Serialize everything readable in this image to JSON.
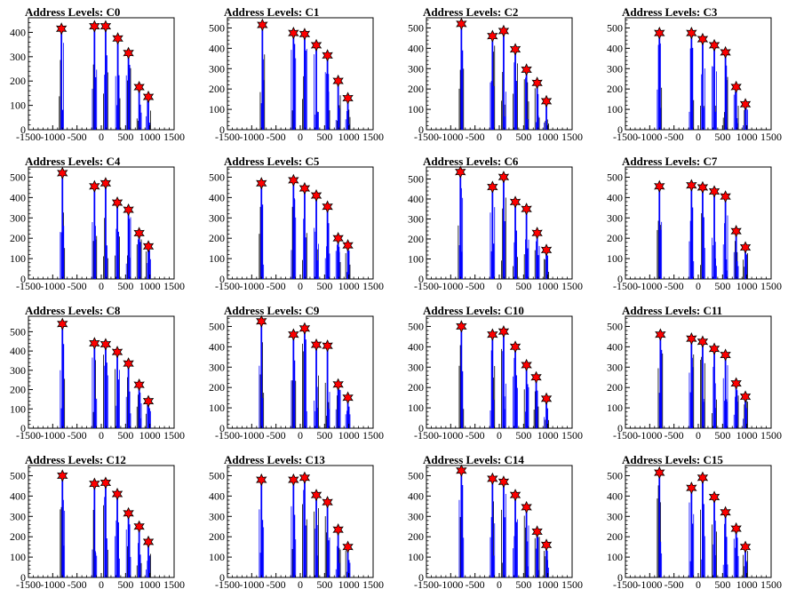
{
  "chart_data": [
    {
      "type": "bar",
      "title": "Address Levels: C0",
      "xlim": [
        -1500,
        1500
      ],
      "ylim": [
        0,
        460
      ],
      "xticks": [
        -1500,
        -1000,
        -500,
        0,
        500,
        1000,
        1500
      ],
      "yticks": [
        0,
        100,
        200,
        300,
        400
      ],
      "peaks": [
        {
          "x": -820,
          "y": 415
        },
        {
          "x": -140,
          "y": 425
        },
        {
          "x": 90,
          "y": 425
        },
        {
          "x": 340,
          "y": 375
        },
        {
          "x": 560,
          "y": 315
        },
        {
          "x": 780,
          "y": 175
        },
        {
          "x": 970,
          "y": 135
        }
      ]
    },
    {
      "type": "bar",
      "title": "Address Levels: C1",
      "xlim": [
        -1500,
        1500
      ],
      "ylim": [
        0,
        550
      ],
      "xticks": [
        -1500,
        -1000,
        -500,
        0,
        500,
        1000,
        1500
      ],
      "yticks": [
        0,
        100,
        200,
        300,
        400,
        500
      ],
      "peaks": [
        {
          "x": -780,
          "y": 515
        },
        {
          "x": -140,
          "y": 475
        },
        {
          "x": 90,
          "y": 470
        },
        {
          "x": 330,
          "y": 415
        },
        {
          "x": 560,
          "y": 365
        },
        {
          "x": 780,
          "y": 240
        },
        {
          "x": 980,
          "y": 155
        }
      ]
    },
    {
      "type": "bar",
      "title": "Address Levels: C2",
      "xlim": [
        -1500,
        1500
      ],
      "ylim": [
        0,
        550
      ],
      "xticks": [
        -1500,
        -1000,
        -500,
        0,
        500,
        1000,
        1500
      ],
      "yticks": [
        0,
        100,
        200,
        300,
        400,
        500
      ],
      "peaks": [
        {
          "x": -780,
          "y": 520
        },
        {
          "x": -140,
          "y": 460
        },
        {
          "x": 90,
          "y": 485
        },
        {
          "x": 330,
          "y": 395
        },
        {
          "x": 560,
          "y": 295
        },
        {
          "x": 780,
          "y": 230
        },
        {
          "x": 970,
          "y": 140
        }
      ]
    },
    {
      "type": "bar",
      "title": "Address Levels: C3",
      "xlim": [
        -1500,
        1500
      ],
      "ylim": [
        0,
        550
      ],
      "xticks": [
        -1500,
        -1000,
        -500,
        0,
        500,
        1000,
        1500
      ],
      "yticks": [
        0,
        100,
        200,
        300,
        400,
        500
      ],
      "peaks": [
        {
          "x": -800,
          "y": 475
        },
        {
          "x": -140,
          "y": 475
        },
        {
          "x": 90,
          "y": 445
        },
        {
          "x": 330,
          "y": 415
        },
        {
          "x": 560,
          "y": 380
        },
        {
          "x": 780,
          "y": 210
        },
        {
          "x": 970,
          "y": 125
        }
      ]
    },
    {
      "type": "bar",
      "title": "Address Levels: C4",
      "xlim": [
        -1500,
        1500
      ],
      "ylim": [
        0,
        550
      ],
      "xticks": [
        -1500,
        -1000,
        -500,
        0,
        500,
        1000,
        1500
      ],
      "yticks": [
        0,
        100,
        200,
        300,
        400,
        500
      ],
      "peaks": [
        {
          "x": -800,
          "y": 520
        },
        {
          "x": -140,
          "y": 455
        },
        {
          "x": 90,
          "y": 470
        },
        {
          "x": 330,
          "y": 375
        },
        {
          "x": 560,
          "y": 340
        },
        {
          "x": 780,
          "y": 225
        },
        {
          "x": 970,
          "y": 160
        }
      ]
    },
    {
      "type": "bar",
      "title": "Address Levels: C5",
      "xlim": [
        -1500,
        1500
      ],
      "ylim": [
        0,
        550
      ],
      "xticks": [
        -1500,
        -1000,
        -500,
        0,
        500,
        1000,
        1500
      ],
      "yticks": [
        0,
        100,
        200,
        300,
        400,
        500
      ],
      "peaks": [
        {
          "x": -800,
          "y": 470
        },
        {
          "x": -140,
          "y": 485
        },
        {
          "x": 90,
          "y": 445
        },
        {
          "x": 330,
          "y": 410
        },
        {
          "x": 560,
          "y": 355
        },
        {
          "x": 780,
          "y": 200
        },
        {
          "x": 980,
          "y": 165
        }
      ]
    },
    {
      "type": "bar",
      "title": "Address Levels: C6",
      "xlim": [
        -1500,
        1500
      ],
      "ylim": [
        0,
        560
      ],
      "xticks": [
        -1500,
        -1000,
        -500,
        0,
        500,
        1000,
        1500
      ],
      "yticks": [
        0,
        100,
        200,
        300,
        400,
        500
      ],
      "peaks": [
        {
          "x": -800,
          "y": 535
        },
        {
          "x": -140,
          "y": 460
        },
        {
          "x": 90,
          "y": 510
        },
        {
          "x": 330,
          "y": 385
        },
        {
          "x": 560,
          "y": 350
        },
        {
          "x": 780,
          "y": 230
        },
        {
          "x": 970,
          "y": 145
        }
      ]
    },
    {
      "type": "bar",
      "title": "Address Levels: C7",
      "xlim": [
        -1500,
        1500
      ],
      "ylim": [
        0,
        550
      ],
      "xticks": [
        -1500,
        -1000,
        -500,
        0,
        500,
        1000,
        1500
      ],
      "yticks": [
        0,
        100,
        200,
        300,
        400,
        500
      ],
      "peaks": [
        {
          "x": -800,
          "y": 455
        },
        {
          "x": -140,
          "y": 460
        },
        {
          "x": 90,
          "y": 450
        },
        {
          "x": 330,
          "y": 430
        },
        {
          "x": 560,
          "y": 405
        },
        {
          "x": 780,
          "y": 235
        },
        {
          "x": 970,
          "y": 155
        }
      ]
    },
    {
      "type": "bar",
      "title": "Address Levels: C8",
      "xlim": [
        -1500,
        1500
      ],
      "ylim": [
        0,
        580
      ],
      "xticks": [
        -1500,
        -1000,
        -500,
        0,
        500,
        1000,
        1500
      ],
      "yticks": [
        0,
        100,
        200,
        300,
        400,
        500
      ],
      "peaks": [
        {
          "x": -800,
          "y": 540
        },
        {
          "x": -140,
          "y": 440
        },
        {
          "x": 90,
          "y": 435
        },
        {
          "x": 330,
          "y": 395
        },
        {
          "x": 560,
          "y": 335
        },
        {
          "x": 780,
          "y": 225
        },
        {
          "x": 970,
          "y": 140
        }
      ]
    },
    {
      "type": "bar",
      "title": "Address Levels: C9",
      "xlim": [
        -1500,
        1500
      ],
      "ylim": [
        0,
        550
      ],
      "xticks": [
        -1500,
        -1000,
        -500,
        0,
        500,
        1000,
        1500
      ],
      "yticks": [
        0,
        100,
        200,
        300,
        400,
        500
      ],
      "peaks": [
        {
          "x": -800,
          "y": 525
        },
        {
          "x": -140,
          "y": 460
        },
        {
          "x": 90,
          "y": 490
        },
        {
          "x": 330,
          "y": 410
        },
        {
          "x": 560,
          "y": 405
        },
        {
          "x": 780,
          "y": 215
        },
        {
          "x": 980,
          "y": 150
        }
      ]
    },
    {
      "type": "bar",
      "title": "Address Levels: C10",
      "xlim": [
        -1500,
        1500
      ],
      "ylim": [
        0,
        550
      ],
      "xticks": [
        -1500,
        -1000,
        -500,
        0,
        500,
        1000,
        1500
      ],
      "yticks": [
        0,
        100,
        200,
        300,
        400,
        500
      ],
      "peaks": [
        {
          "x": -780,
          "y": 500
        },
        {
          "x": -140,
          "y": 460
        },
        {
          "x": 90,
          "y": 475
        },
        {
          "x": 330,
          "y": 400
        },
        {
          "x": 560,
          "y": 310
        },
        {
          "x": 760,
          "y": 250
        },
        {
          "x": 970,
          "y": 145
        }
      ]
    },
    {
      "type": "bar",
      "title": "Address Levels: C11",
      "xlim": [
        -1500,
        1500
      ],
      "ylim": [
        0,
        550
      ],
      "xticks": [
        -1500,
        -1000,
        -500,
        0,
        500,
        1000,
        1500
      ],
      "yticks": [
        0,
        100,
        200,
        300,
        400,
        500
      ],
      "peaks": [
        {
          "x": -780,
          "y": 460
        },
        {
          "x": -140,
          "y": 440
        },
        {
          "x": 90,
          "y": 425
        },
        {
          "x": 330,
          "y": 390
        },
        {
          "x": 560,
          "y": 360
        },
        {
          "x": 780,
          "y": 220
        },
        {
          "x": 970,
          "y": 155
        }
      ]
    },
    {
      "type": "bar",
      "title": "Address Levels: C12",
      "xlim": [
        -1500,
        1500
      ],
      "ylim": [
        0,
        550
      ],
      "xticks": [
        -1500,
        -1000,
        -500,
        0,
        500,
        1000,
        1500
      ],
      "yticks": [
        0,
        100,
        200,
        300,
        400,
        500
      ],
      "peaks": [
        {
          "x": -800,
          "y": 500
        },
        {
          "x": -140,
          "y": 460
        },
        {
          "x": 90,
          "y": 465
        },
        {
          "x": 330,
          "y": 410
        },
        {
          "x": 560,
          "y": 315
        },
        {
          "x": 780,
          "y": 250
        },
        {
          "x": 970,
          "y": 175
        }
      ]
    },
    {
      "type": "bar",
      "title": "Address Levels: C13",
      "xlim": [
        -1500,
        1500
      ],
      "ylim": [
        0,
        550
      ],
      "xticks": [
        -1500,
        -1000,
        -500,
        0,
        500,
        1000,
        1500
      ],
      "yticks": [
        0,
        100,
        200,
        300,
        400,
        500
      ],
      "peaks": [
        {
          "x": -800,
          "y": 480
        },
        {
          "x": -140,
          "y": 480
        },
        {
          "x": 90,
          "y": 490
        },
        {
          "x": 330,
          "y": 405
        },
        {
          "x": 560,
          "y": 370
        },
        {
          "x": 780,
          "y": 235
        },
        {
          "x": 980,
          "y": 150
        }
      ]
    },
    {
      "type": "bar",
      "title": "Address Levels: C14",
      "xlim": [
        -1500,
        1500
      ],
      "ylim": [
        0,
        550
      ],
      "xticks": [
        -1500,
        -1000,
        -500,
        0,
        500,
        1000,
        1500
      ],
      "yticks": [
        0,
        100,
        200,
        300,
        400,
        500
      ],
      "peaks": [
        {
          "x": -780,
          "y": 525
        },
        {
          "x": -140,
          "y": 485
        },
        {
          "x": 90,
          "y": 470
        },
        {
          "x": 330,
          "y": 405
        },
        {
          "x": 560,
          "y": 345
        },
        {
          "x": 780,
          "y": 225
        },
        {
          "x": 970,
          "y": 160
        }
      ]
    },
    {
      "type": "bar",
      "title": "Address Levels: C15",
      "xlim": [
        -1500,
        1500
      ],
      "ylim": [
        0,
        550
      ],
      "xticks": [
        -1500,
        -1000,
        -500,
        0,
        500,
        1000,
        1500
      ],
      "yticks": [
        0,
        100,
        200,
        300,
        400,
        500
      ],
      "peaks": [
        {
          "x": -800,
          "y": 515
        },
        {
          "x": -140,
          "y": 440
        },
        {
          "x": 90,
          "y": 490
        },
        {
          "x": 330,
          "y": 395
        },
        {
          "x": 560,
          "y": 320
        },
        {
          "x": 780,
          "y": 240
        },
        {
          "x": 970,
          "y": 150
        }
      ]
    }
  ],
  "colors": {
    "histogram": "#0000ff",
    "marker": "#ff0000",
    "axis": "#000000"
  },
  "marker_icon": "red-star-marker"
}
